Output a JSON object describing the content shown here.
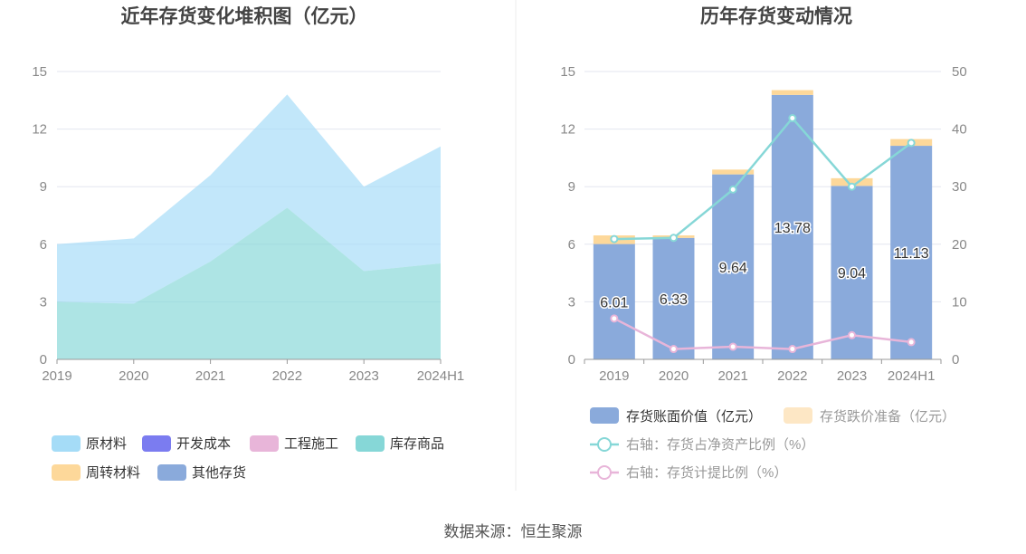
{
  "footer": {
    "source": "数据来源：恒生聚源"
  },
  "colors": {
    "raw_material": "#a5dcf7",
    "dev_cost": "#7b7cf0",
    "construction": "#e8b5d9",
    "inventory_goods": "#86d7d7",
    "turnover_material": "#fdd89a",
    "other": "#8aaadb",
    "book_value": "#8aaadb",
    "impairment": "#fde7c5",
    "ratio_line": "#86d7d7",
    "provision_line": "#e8b5d9",
    "grid": "#e3e6ef",
    "axis": "#999999"
  },
  "chart_data": [
    {
      "type": "area",
      "title": "近年存货变化堆积图（亿元）",
      "stacked": true,
      "categories": [
        "2019",
        "2020",
        "2021",
        "2022",
        "2023",
        "2024H1"
      ],
      "y_ticks": [
        "0",
        "3",
        "6",
        "9",
        "12",
        "15"
      ],
      "ylim": [
        0,
        15
      ],
      "grid": true,
      "series": [
        {
          "name": "库存商品",
          "color_key": "inventory_goods",
          "values": [
            3.0,
            2.9,
            5.1,
            7.9,
            4.6,
            5.0
          ]
        },
        {
          "name": "原材料",
          "color_key": "raw_material",
          "values": [
            3.0,
            3.4,
            4.5,
            5.9,
            4.4,
            6.1
          ]
        },
        {
          "name": "开发成本",
          "color_key": "dev_cost",
          "values": [
            0,
            0,
            0,
            0,
            0,
            0
          ]
        },
        {
          "name": "工程施工",
          "color_key": "construction",
          "values": [
            0,
            0,
            0,
            0,
            0,
            0
          ]
        },
        {
          "name": "周转材料",
          "color_key": "turnover_material",
          "values": [
            0,
            0,
            0,
            0,
            0,
            0
          ]
        },
        {
          "name": "其他存货",
          "color_key": "other",
          "values": [
            0,
            0,
            0,
            0,
            0,
            0
          ]
        }
      ],
      "legend": [
        {
          "label": "原材料",
          "color_key": "raw_material"
        },
        {
          "label": "开发成本",
          "color_key": "dev_cost"
        },
        {
          "label": "工程施工",
          "color_key": "construction"
        },
        {
          "label": "库存商品",
          "color_key": "inventory_goods"
        },
        {
          "label": "周转材料",
          "color_key": "turnover_material"
        },
        {
          "label": "其他存货",
          "color_key": "other"
        }
      ],
      "legend_position": "bottom"
    },
    {
      "type": "bar",
      "title": "历年存货变动情况",
      "stacked": true,
      "categories": [
        "2019",
        "2020",
        "2021",
        "2022",
        "2023",
        "2024H1"
      ],
      "y_ticks": [
        "0",
        "3",
        "6",
        "9",
        "12",
        "15"
      ],
      "ylim": [
        0,
        15
      ],
      "y2_ticks": [
        "0",
        "10",
        "20",
        "30",
        "40",
        "50"
      ],
      "y2lim": [
        0,
        50
      ],
      "grid": true,
      "series": [
        {
          "name": "存货账面价值（亿元）",
          "color_key": "book_value",
          "values": [
            6.01,
            6.33,
            9.64,
            13.78,
            9.04,
            11.13
          ],
          "labels": [
            "6.01",
            "6.33",
            "9.64",
            "13.78",
            "9.04",
            "11.13"
          ]
        },
        {
          "name": "存货跌价准备（亿元）",
          "color_key": "impairment",
          "values": [
            0.45,
            0.13,
            0.25,
            0.25,
            0.4,
            0.35
          ]
        }
      ],
      "line_series": [
        {
          "name": "右轴：存货占净资产比例（%）",
          "color_key": "ratio_line",
          "axis": "right",
          "values": [
            20.9,
            21.1,
            29.5,
            41.9,
            30.0,
            37.6
          ]
        },
        {
          "name": "右轴：存货计提比例（%）",
          "color_key": "provision_line",
          "axis": "right",
          "values": [
            7.1,
            1.8,
            2.2,
            1.8,
            4.2,
            3.0
          ]
        }
      ],
      "legend_position": "bottom"
    }
  ]
}
